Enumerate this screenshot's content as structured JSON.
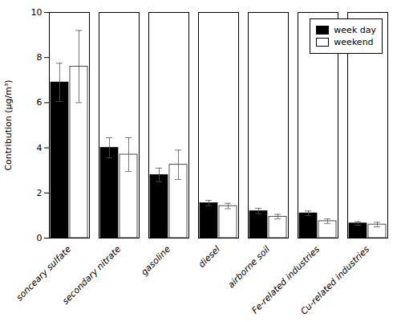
{
  "chart_data": {
    "type": "bar",
    "categories": [
      "sonceary sulfate",
      "secondary nitrate",
      "gasoline",
      "diesel",
      "airborne soil",
      "Fe-related industries",
      "Cu-related industries"
    ],
    "series": [
      {
        "name": "week day",
        "color": "#000000",
        "values": [
          6.9,
          4.0,
          2.8,
          1.55,
          1.2,
          1.1,
          0.65
        ],
        "errors": [
          0.85,
          0.45,
          0.3,
          0.12,
          0.12,
          0.1,
          0.08
        ]
      },
      {
        "name": "weekend",
        "color": "#ffffff",
        "values": [
          7.6,
          3.7,
          3.25,
          1.42,
          0.95,
          0.75,
          0.6
        ],
        "errors": [
          1.6,
          0.75,
          0.65,
          0.12,
          0.1,
          0.1,
          0.1
        ]
      }
    ],
    "ylabel": "Contribution (μg/m³)",
    "ylim": [
      0,
      10
    ],
    "yticks": [
      0,
      2,
      4,
      6,
      8,
      10
    ],
    "legend": "upper right"
  }
}
